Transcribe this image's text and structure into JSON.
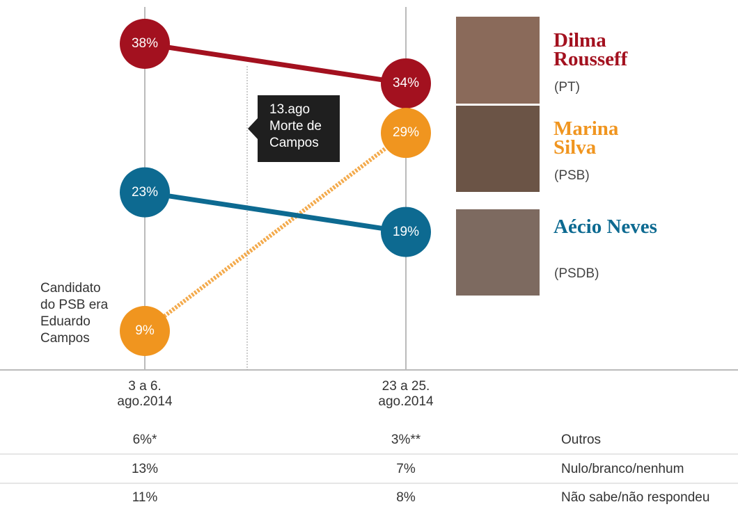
{
  "chart_data": {
    "type": "slope",
    "categories": [
      "3 a 6. ago.2014",
      "23 a 25. ago.2014"
    ],
    "series": [
      {
        "name": "Dilma Rousseff",
        "party": "(PT)",
        "color": "#a3111f",
        "values": [
          38,
          34
        ],
        "value_labels": [
          "38%",
          "34%"
        ],
        "dashed": false
      },
      {
        "name": "Marina Silva",
        "party": "(PSB)",
        "color": "#f0951f",
        "values": [
          9,
          29
        ],
        "value_labels": [
          "9%",
          "29%"
        ],
        "dashed": true
      },
      {
        "name": "Aécio Neves",
        "party": "(PSDB)",
        "color": "#0d6a91",
        "values": [
          23,
          19
        ],
        "value_labels": [
          "23%",
          "19%"
        ],
        "dashed": false
      }
    ],
    "annotations": [
      {
        "lines": [
          "13.ago",
          "Morte de",
          "Campos"
        ]
      },
      {
        "lines": [
          "Candidato",
          "do PSB era",
          "Eduardo",
          "Campos"
        ]
      }
    ]
  },
  "table": {
    "rows": [
      [
        "6%*",
        "3%**",
        "Outros"
      ],
      [
        "13%",
        "7%",
        "Nulo/branco/nenhum"
      ],
      [
        "11%",
        "8%",
        "Não sabe/não respondeu"
      ]
    ]
  }
}
